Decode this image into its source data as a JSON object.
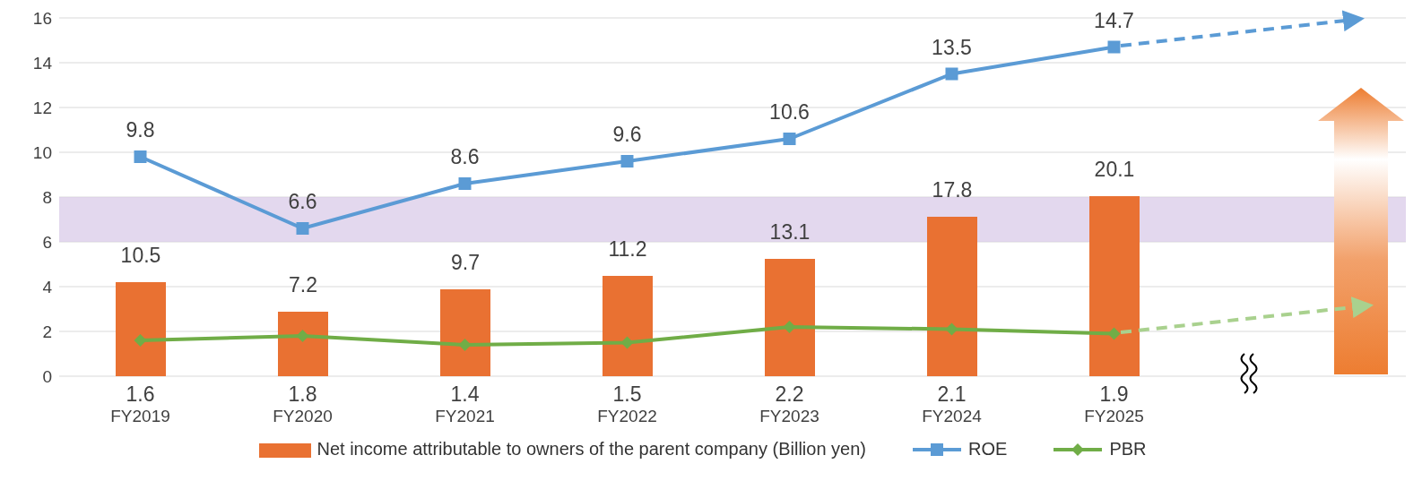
{
  "chart_data": {
    "type": "bar",
    "categories": [
      "FY2019",
      "FY2020",
      "FY2021",
      "FY2022",
      "FY2023",
      "FY2024",
      "FY2025"
    ],
    "series": [
      {
        "name": "Net income attributable to owners of the parent company (Billion yen)",
        "color": "#e97132",
        "axis": "y2",
        "values": [
          10.5,
          7.2,
          9.7,
          11.2,
          13.1,
          17.8,
          20.1
        ]
      },
      {
        "type": "line",
        "name": "ROE",
        "color": "#5b9bd5",
        "marker": "square",
        "values": [
          9.8,
          6.6,
          8.6,
          9.6,
          10.6,
          13.5,
          14.7
        ]
      },
      {
        "type": "line",
        "name": "PBR",
        "color": "#70ad47",
        "marker": "diamond",
        "values": [
          1.6,
          1.8,
          1.4,
          1.5,
          2.2,
          2.1,
          1.9
        ]
      }
    ],
    "ylim": [
      0,
      16
    ],
    "yticks": [
      0,
      2,
      4,
      6,
      8,
      10,
      12,
      14,
      16
    ],
    "y2lim": [
      0,
      40
    ],
    "bands": [
      {
        "axis": "y",
        "from": 6,
        "to": 8,
        "color": "#d9cbe8"
      }
    ],
    "grid": "y",
    "legend": "bottom",
    "data_labels": true
  }
}
